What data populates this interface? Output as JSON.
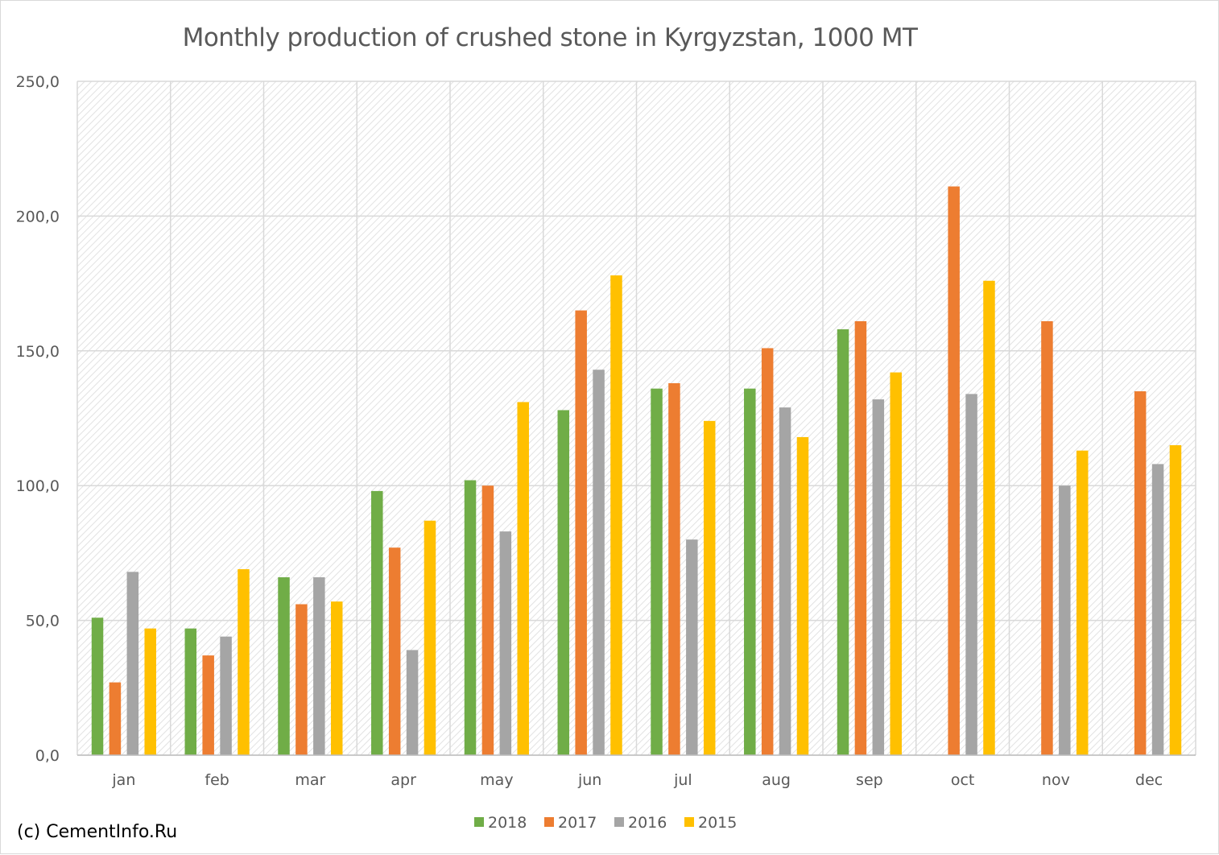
{
  "chart_data": {
    "type": "bar",
    "title": "Monthly production of crushed stone in Kyrgyzstan, 1000 MT",
    "xlabel": "",
    "ylabel": "",
    "ylim": [
      0,
      250
    ],
    "yticks": [
      "0,0",
      "50,0",
      "100,0",
      "150,0",
      "200,0",
      "250,0"
    ],
    "ytick_values": [
      0,
      50,
      100,
      150,
      200,
      250
    ],
    "categories": [
      "jan",
      "feb",
      "mar",
      "apr",
      "may",
      "jun",
      "jul",
      "aug",
      "sep",
      "oct",
      "nov",
      "dec"
    ],
    "series": [
      {
        "name": "2018",
        "color": "#70ad47",
        "values": [
          51,
          47,
          66,
          98,
          102,
          128,
          136,
          136,
          158,
          null,
          null,
          null
        ]
      },
      {
        "name": "2017",
        "color": "#ed7d31",
        "values": [
          27,
          37,
          56,
          77,
          100,
          165,
          138,
          151,
          161,
          211,
          161,
          135
        ]
      },
      {
        "name": "2016",
        "color": "#a5a5a5",
        "values": [
          68,
          44,
          66,
          39,
          83,
          143,
          80,
          129,
          132,
          134,
          100,
          108
        ]
      },
      {
        "name": "2015",
        "color": "#ffc000",
        "values": [
          47,
          69,
          57,
          87,
          131,
          178,
          124,
          118,
          142,
          176,
          113,
          115
        ]
      }
    ],
    "grid": true,
    "legend_position": "bottom"
  },
  "copyright": "(c) CementInfo.Ru"
}
